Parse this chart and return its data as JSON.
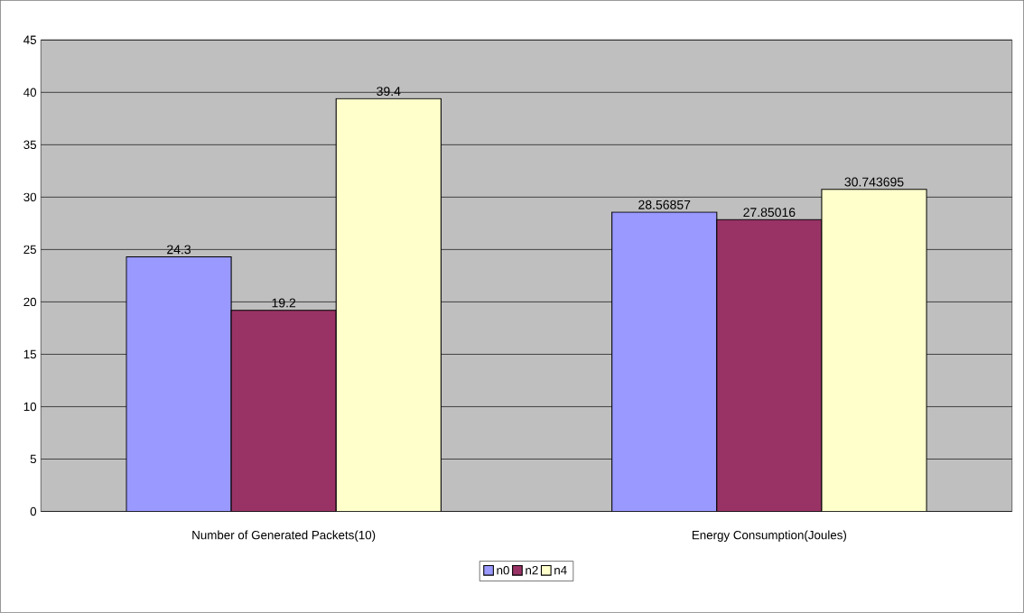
{
  "chart_data": {
    "type": "bar",
    "categories": [
      "Number of Generated Packets(10)",
      "Energy Consumption(Joules)"
    ],
    "series": [
      {
        "name": "n0",
        "color": "#9999ff",
        "values": [
          24.3,
          28.56857
        ]
      },
      {
        "name": "n2",
        "color": "#993366",
        "values": [
          19.2,
          27.85016
        ]
      },
      {
        "name": "n4",
        "color": "#ffffcc",
        "values": [
          39.4,
          30.743695
        ]
      }
    ],
    "ylim": [
      0,
      45
    ],
    "yticks": [
      0,
      5,
      10,
      15,
      20,
      25,
      30,
      35,
      40,
      45
    ],
    "grid": "y",
    "legend": "bottom",
    "data_labels": true
  }
}
